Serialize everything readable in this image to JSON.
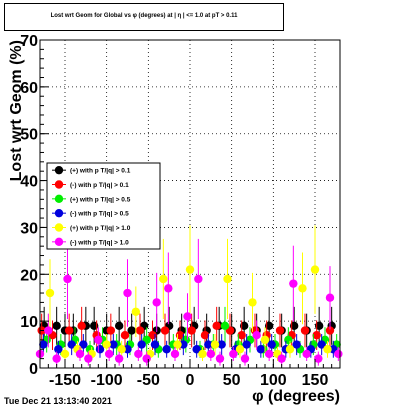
{
  "chart_data": {
    "type": "scatter",
    "title": "Lost wrt Geom for Global vs φ (degrees) at |  η |  <= 1.0 at pT > 0.11",
    "xlabel": "φ (degrees)",
    "ylabel": "Lost wrt Geom (%)",
    "xlim": [
      -180,
      180
    ],
    "ylim": [
      0,
      70
    ],
    "xticks": [
      -150,
      -100,
      -50,
      0,
      50,
      100,
      150
    ],
    "yticks": [
      0,
      10,
      20,
      30,
      40,
      50,
      60,
      70
    ],
    "grid": true,
    "legend_position": "left-middle",
    "series": [
      {
        "name": "(+) with p T/|q| > 0.1",
        "color": "#000000",
        "x": [
          -175,
          -160,
          -150,
          -140,
          -125,
          -115,
          -100,
          -85,
          -70,
          -55,
          -40,
          -25,
          -10,
          5,
          20,
          35,
          50,
          65,
          80,
          95,
          110,
          125,
          140,
          155,
          170
        ],
        "y": [
          9,
          9,
          8,
          8,
          9,
          9,
          8,
          9,
          8,
          9,
          8,
          9,
          8,
          9,
          8,
          9,
          8,
          9,
          8,
          9,
          8,
          9,
          8,
          9,
          9
        ]
      },
      {
        "name": "(-) with p T/|q| > 0.1",
        "color": "#ff0000",
        "x": [
          -178,
          -165,
          -145,
          -130,
          -112,
          -95,
          -78,
          -60,
          -45,
          -30,
          -12,
          2,
          18,
          32,
          48,
          62,
          78,
          92,
          108,
          122,
          138,
          152,
          168
        ],
        "y": [
          8,
          7,
          8,
          9,
          7,
          8,
          7,
          8,
          7,
          8,
          7,
          8,
          7,
          9,
          8,
          7,
          8,
          7,
          8,
          7,
          8,
          7,
          8
        ]
      },
      {
        "name": "(+) with p T/|q| > 0.5",
        "color": "#00ee00",
        "x": [
          -172,
          -155,
          -138,
          -120,
          -105,
          -88,
          -72,
          -52,
          -38,
          -20,
          -5,
          12,
          28,
          42,
          58,
          72,
          88,
          102,
          118,
          132,
          148,
          162,
          176
        ],
        "y": [
          6,
          5,
          6,
          4,
          6,
          5,
          5,
          6,
          4,
          5,
          6,
          4,
          5,
          9,
          5,
          6,
          4,
          5,
          6,
          4,
          5,
          6,
          5
        ]
      },
      {
        "name": "(-) with p T/|q| > 0.5",
        "color": "#0000dd",
        "x": [
          -176,
          -158,
          -142,
          -128,
          -108,
          -92,
          -75,
          -58,
          -42,
          -28,
          -8,
          8,
          22,
          38,
          55,
          68,
          85,
          98,
          115,
          128,
          145,
          158,
          172
        ],
        "y": [
          5,
          4,
          5,
          5,
          4,
          5,
          4,
          5,
          5,
          4,
          5,
          4,
          5,
          5,
          4,
          5,
          4,
          5,
          4,
          5,
          4,
          5,
          4
        ]
      },
      {
        "name": "(+) with p T/|q| > 1.0",
        "color": "#ffff00",
        "x": [
          -168,
          -150,
          -135,
          -118,
          -100,
          -82,
          -65,
          -48,
          -32,
          -15,
          0,
          15,
          30,
          45,
          60,
          75,
          90,
          105,
          120,
          135,
          150,
          165
        ],
        "y": [
          16,
          3,
          4,
          3,
          5,
          4,
          12,
          3,
          19,
          5,
          21,
          3,
          5,
          19,
          4,
          14,
          6,
          3,
          4,
          17,
          21,
          4
        ]
      },
      {
        "name": "(-) with p T/|q| > 1.0",
        "color": "#ff00ff",
        "x": [
          -180,
          -170,
          -160,
          -147,
          -132,
          -122,
          -110,
          -97,
          -85,
          -75,
          -62,
          -52,
          -40,
          -26,
          -18,
          -3,
          10,
          25,
          36,
          52,
          66,
          80,
          95,
          110,
          124,
          140,
          154,
          168,
          178
        ],
        "y": [
          3,
          8,
          2,
          19,
          3,
          2,
          6,
          3,
          2,
          16,
          3,
          2,
          14,
          17,
          3,
          11,
          19,
          3,
          2,
          3,
          2,
          7,
          3,
          2,
          18,
          3,
          2,
          15,
          3
        ]
      }
    ]
  },
  "footer": {
    "date": "Tue Dec 21 13:13:40 2021"
  }
}
